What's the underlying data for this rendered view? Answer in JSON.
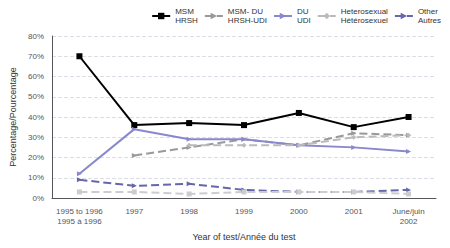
{
  "chart_data": {
    "type": "line",
    "categories": [
      "1995 to 1996\n1995 à 1996",
      "1997",
      "1998",
      "1999",
      "2000",
      "2001",
      "June/juin\n2002"
    ],
    "series": [
      {
        "name": "MSM\nHRSH",
        "color": "#000000",
        "marker": "square",
        "line_style": "solid",
        "values": [
          70,
          36,
          37,
          36,
          42,
          35,
          40
        ]
      },
      {
        "name": "MSM- DU\nHRSH-UDI",
        "color": "#999999",
        "marker": "triangle",
        "line_style": "dashed",
        "values": [
          null,
          21,
          25,
          29,
          26,
          32,
          31
        ]
      },
      {
        "name": "DU\nUDI",
        "color": "#8888cc",
        "marker": "triangle",
        "line_style": "solid",
        "values": [
          12,
          34,
          29,
          29,
          26,
          25,
          23
        ]
      },
      {
        "name": "Heterosexual\nHétérosexuel",
        "color": "#bbbbbb",
        "marker": "diamond",
        "line_style": "dashed",
        "values": [
          null,
          null,
          26,
          26,
          26,
          30,
          31
        ]
      },
      {
        "name": "Other\nAutres",
        "color": "#6666aa",
        "marker": "triangle",
        "line_style": "dashed",
        "values": [
          9,
          6,
          7,
          4,
          3,
          3,
          4
        ]
      },
      {
        "color": "#cccccc",
        "marker": "square",
        "line_style": "dashed",
        "values": [
          3,
          3,
          2,
          3,
          3,
          3,
          2
        ]
      }
    ],
    "ylim": [
      0,
      80
    ],
    "yticks": [
      {
        "value": 0,
        "label": "0%"
      },
      {
        "value": 10,
        "label": "10%"
      },
      {
        "value": 20,
        "label": "20%"
      },
      {
        "value": 30,
        "label": "30%"
      },
      {
        "value": 40,
        "label": "40%"
      },
      {
        "value": 50,
        "label": "50%"
      },
      {
        "value": 60,
        "label": "60%"
      },
      {
        "value": 70,
        "label": "70%"
      },
      {
        "value": 80,
        "label": "80%"
      }
    ],
    "ylabel": "Percentage/Pourcentage",
    "xlabel": "Year of test/Année du test",
    "grid": true,
    "legend": "upper right"
  }
}
